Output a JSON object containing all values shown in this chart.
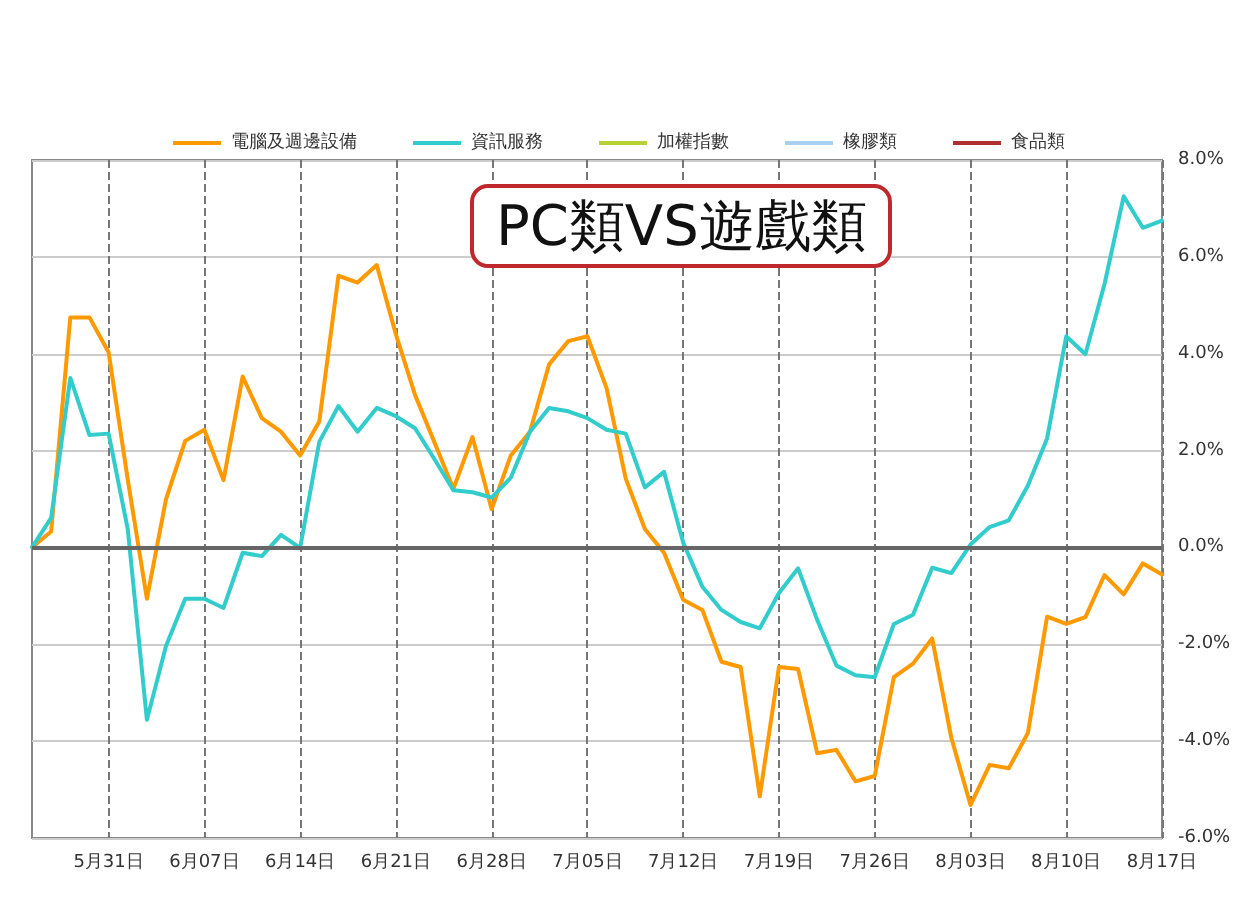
{
  "chart_data": {
    "type": "line",
    "title": "PC類VS遊戲類",
    "categories": [
      null,
      null,
      null,
      null,
      "5月31日",
      null,
      null,
      null,
      null,
      "6月07日",
      null,
      null,
      null,
      null,
      "6月14日",
      null,
      null,
      null,
      null,
      "6月21日",
      null,
      null,
      null,
      null,
      "6月28日",
      null,
      null,
      null,
      null,
      "7月05日",
      null,
      null,
      null,
      null,
      "7月12日",
      null,
      null,
      null,
      null,
      "7月19日",
      null,
      null,
      null,
      null,
      "7月26日",
      null,
      null,
      null,
      null,
      "8月03日",
      null,
      null,
      null,
      null,
      "8月10日",
      null,
      null,
      null,
      null,
      "8月17日"
    ],
    "series": [
      {
        "name": "電腦及週邊設備",
        "color": "#ff9900",
        "values": [
          0,
          0.33,
          4.75,
          4.75,
          4.03,
          1.4,
          -1.06,
          1.0,
          2.2,
          2.43,
          1.39,
          3.53,
          2.67,
          2.39,
          1.9,
          2.6,
          5.61,
          5.47,
          5.83,
          4.4,
          3.15,
          2.18,
          1.21,
          2.28,
          0.79,
          1.9,
          2.39,
          3.78,
          4.26,
          4.36,
          3.29,
          1.42,
          0.38,
          -0.11,
          -1.08,
          -1.29,
          -2.36,
          -2.47,
          -5.14,
          -2.47,
          -2.51,
          -4.25,
          -4.18,
          -4.83,
          -4.72,
          -2.68,
          -2.4,
          -1.88,
          -3.93,
          -5.32,
          -4.49,
          -4.56,
          -3.83,
          -1.43,
          -1.58,
          -1.44,
          -0.57,
          -0.97,
          -0.33,
          -0.56
        ]
      },
      {
        "name": "資訊服務",
        "color": "#33cccc",
        "values": [
          0,
          0.61,
          3.5,
          2.32,
          2.35,
          0.38,
          -3.56,
          -2.03,
          -1.06,
          -1.06,
          -1.25,
          -0.11,
          -0.18,
          0.26,
          -0.01,
          2.18,
          2.92,
          2.39,
          2.88,
          2.71,
          2.46,
          1.83,
          1.18,
          1.14,
          1.03,
          1.44,
          2.39,
          2.88,
          2.81,
          2.67,
          2.43,
          2.35,
          1.24,
          1.56,
          0.1,
          -0.81,
          -1.29,
          -1.54,
          -1.67,
          -0.94,
          -0.43,
          -1.5,
          -2.44,
          -2.64,
          -2.68,
          -1.58,
          -1.39,
          -0.42,
          -0.53,
          0.06,
          0.42,
          0.56,
          1.28,
          2.25,
          4.36,
          3.99,
          5.44,
          7.25,
          6.6,
          6.75
        ]
      },
      {
        "name": "加權指數",
        "color": "#b5d334",
        "values": [
          null,
          null,
          null,
          null,
          null,
          null,
          null,
          null,
          null,
          null,
          null,
          null,
          null,
          null,
          null,
          null,
          null,
          null,
          null,
          null,
          null,
          null,
          null,
          null,
          null,
          null,
          null,
          null,
          null,
          null,
          null,
          null,
          null,
          null,
          null,
          null,
          null,
          null,
          null,
          null,
          null,
          null,
          null,
          null,
          null,
          null,
          null,
          null,
          null,
          null,
          null,
          null,
          null,
          null,
          null,
          null,
          null,
          null,
          null,
          null
        ]
      },
      {
        "name": "橡膠類",
        "color": "#a8d0f0",
        "values": [
          null,
          null,
          null,
          null,
          null,
          null,
          null,
          null,
          null,
          null,
          null,
          null,
          null,
          null,
          null,
          null,
          null,
          null,
          null,
          null,
          null,
          null,
          null,
          null,
          null,
          null,
          null,
          null,
          null,
          null,
          null,
          null,
          null,
          null,
          null,
          null,
          null,
          null,
          null,
          null,
          null,
          null,
          null,
          null,
          null,
          null,
          null,
          null,
          null,
          null,
          null,
          null,
          null,
          null,
          null,
          null,
          null,
          null,
          null,
          null
        ]
      },
      {
        "name": "食品類",
        "color": "#b03030",
        "values": [
          null,
          null,
          null,
          null,
          null,
          null,
          null,
          null,
          null,
          null,
          null,
          null,
          null,
          null,
          null,
          null,
          null,
          null,
          null,
          null,
          null,
          null,
          null,
          null,
          null,
          null,
          null,
          null,
          null,
          null,
          null,
          null,
          null,
          null,
          null,
          null,
          null,
          null,
          null,
          null,
          null,
          null,
          null,
          null,
          null,
          null,
          null,
          null,
          null,
          null,
          null,
          null,
          null,
          null,
          null,
          null,
          null,
          null,
          null,
          null
        ]
      }
    ],
    "ylim": [
      -6,
      8
    ],
    "yticks": [
      {
        "value": -6,
        "label": "-6.0%"
      },
      {
        "value": -4,
        "label": "-4.0%"
      },
      {
        "value": -2,
        "label": "-2.0%"
      },
      {
        "value": 0,
        "label": "0.0%"
      },
      {
        "value": 2,
        "label": "2.0%"
      },
      {
        "value": 4,
        "label": "4.0%"
      },
      {
        "value": 6,
        "label": "6.0%"
      },
      {
        "value": 8,
        "label": "8.0%"
      }
    ],
    "ref_lines": [
      {
        "axis": "y",
        "value": 0,
        "color": "#666666"
      }
    ],
    "grid": true,
    "legend": "top",
    "marker": "none",
    "line_style": "solid"
  }
}
